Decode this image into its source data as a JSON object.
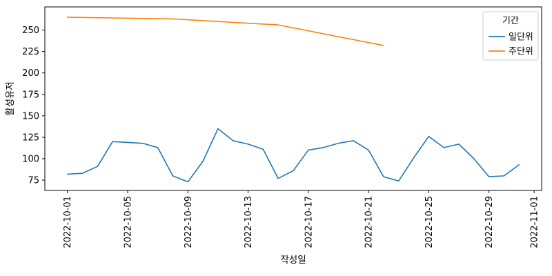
{
  "figure": {
    "background": "#ffffff"
  },
  "chart_data": {
    "type": "line",
    "title": "",
    "xlabel": "작성일",
    "ylabel": "활성유저",
    "legend_title": "기간",
    "legend_position": "upper right",
    "grid": false,
    "x_epoch": "2022-10-01",
    "x_tick_labels": [
      "2022-10-01",
      "2022-10-05",
      "2022-10-09",
      "2022-10-13",
      "2022-10-17",
      "2022-10-21",
      "2022-10-25",
      "2022-10-29",
      "2022-11-01"
    ],
    "y_ticks": [
      75,
      100,
      125,
      150,
      175,
      200,
      225,
      250
    ],
    "xlim_days": [
      -1.5,
      31.5
    ],
    "ylim": [
      63,
      277
    ],
    "axis_color": "#000000",
    "legend_edge_color": "#cccccc",
    "series": [
      {
        "name": "일단위",
        "color": "#1f77b4",
        "x": [
          "2022-10-01",
          "2022-10-02",
          "2022-10-03",
          "2022-10-04",
          "2022-10-05",
          "2022-10-06",
          "2022-10-07",
          "2022-10-08",
          "2022-10-09",
          "2022-10-10",
          "2022-10-11",
          "2022-10-12",
          "2022-10-13",
          "2022-10-14",
          "2022-10-15",
          "2022-10-16",
          "2022-10-17",
          "2022-10-18",
          "2022-10-19",
          "2022-10-20",
          "2022-10-21",
          "2022-10-22",
          "2022-10-23",
          "2022-10-24",
          "2022-10-25",
          "2022-10-26",
          "2022-10-27",
          "2022-10-28",
          "2022-10-29",
          "2022-10-30",
          "2022-10-31"
        ],
        "values": [
          82,
          83,
          91,
          120,
          119,
          118,
          113,
          80,
          73,
          97,
          135,
          121,
          117,
          111,
          77,
          86,
          110,
          113,
          118,
          121,
          110,
          79,
          74,
          101,
          126,
          113,
          117,
          100,
          79,
          80,
          93
        ]
      },
      {
        "name": "주단위",
        "color": "#ff7f0e",
        "x": [
          "2022-10-01",
          "2022-10-08",
          "2022-10-15",
          "2022-10-22"
        ],
        "values": [
          265,
          263,
          256,
          232
        ]
      }
    ]
  }
}
